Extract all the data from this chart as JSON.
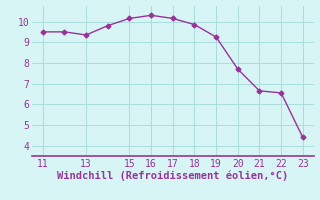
{
  "x": [
    11,
    12,
    13,
    14,
    15,
    16,
    17,
    18,
    19,
    20,
    21,
    22,
    23
  ],
  "y": [
    9.5,
    9.5,
    9.35,
    9.8,
    10.15,
    10.3,
    10.15,
    9.85,
    9.25,
    7.7,
    6.65,
    6.55,
    4.4
  ],
  "line_color": "#993399",
  "marker": "D",
  "markersize": 2.5,
  "linewidth": 1.0,
  "background_color": "#d8f5f5",
  "grid_color": "#aadddd",
  "border_color": "#993399",
  "xlabel": "Windchill (Refroidissement éolien,°C)",
  "xlabel_color": "#993399",
  "tick_color": "#993399",
  "xlim": [
    10.5,
    23.5
  ],
  "ylim": [
    3.5,
    10.75
  ],
  "xticks": [
    11,
    13,
    15,
    16,
    17,
    18,
    19,
    20,
    21,
    22,
    23
  ],
  "yticks": [
    4,
    5,
    6,
    7,
    8,
    9,
    10
  ],
  "xlabel_fontsize": 7.5,
  "tick_fontsize": 7
}
